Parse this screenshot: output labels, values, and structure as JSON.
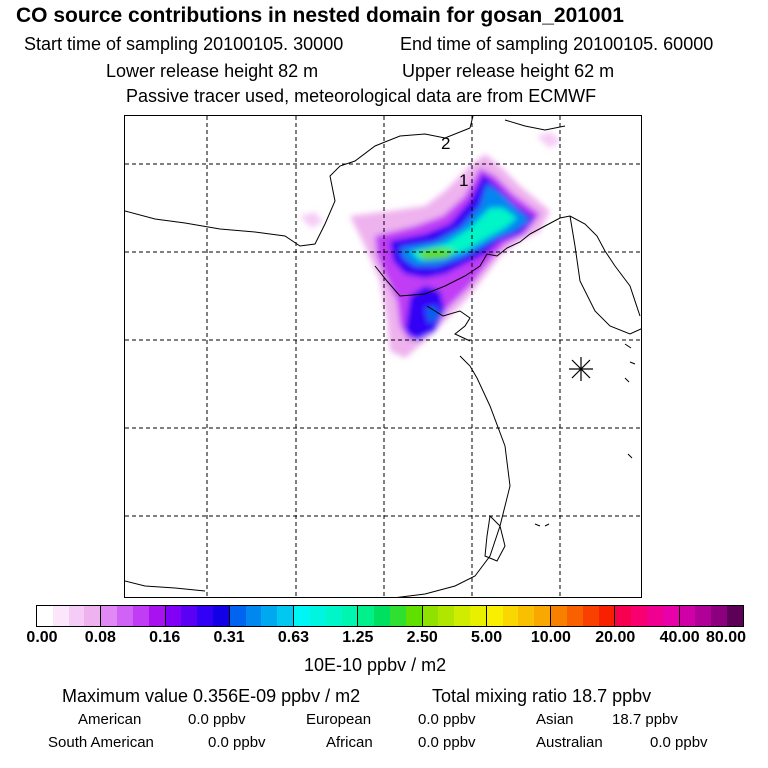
{
  "title": "CO  source contributions in nested domain for gosan_201001",
  "header": {
    "start": "Start time of sampling 20100105. 30000",
    "end": "End time of sampling 20100105. 60000",
    "lower": "Lower release height   82 m",
    "upper": "Upper release height   62 m",
    "tracer": "Passive tracer used, meteorological data are from ECMWF"
  },
  "map": {
    "labels": {
      "one": "1",
      "two": "2"
    },
    "receptor_icon": "asterisk-icon"
  },
  "colorbar": {
    "ticks": [
      "0.00",
      "0.08",
      "0.16",
      "0.31",
      "0.63",
      "1.25",
      "2.50",
      "5.00",
      "10.00",
      "20.00",
      "40.00",
      "80.00"
    ],
    "colors": [
      [
        "#ffffff",
        "#fbe6fb",
        "#f5ccf5",
        "#eeb2ee"
      ],
      [
        "#e089f5",
        "#d062f5",
        "#c03cf5",
        "#a812f0"
      ],
      [
        "#8200f5",
        "#5a00f5",
        "#3200f5",
        "#1200e6"
      ],
      [
        "#0064f0",
        "#0088f0",
        "#00a8f0",
        "#00c8f0"
      ],
      [
        "#00f5f5",
        "#00f5e0",
        "#00f5c8",
        "#00f5b0"
      ],
      [
        "#00f08c",
        "#00e060",
        "#30e030",
        "#60e000"
      ],
      [
        "#90e000",
        "#b0e600",
        "#d0ec00",
        "#e8f000"
      ],
      [
        "#f8f000",
        "#f8d800",
        "#f8c000",
        "#f8a800"
      ],
      [
        "#f88000",
        "#f86000",
        "#f84000",
        "#f82000"
      ],
      [
        "#f80050",
        "#f80070",
        "#f00090",
        "#e800a8"
      ],
      [
        "#d000a8",
        "#b00098",
        "#8c0080",
        "#5c0058"
      ]
    ],
    "units": "10E-10 ppbv / m2"
  },
  "summary": {
    "max": "Maximum value  0.356E-09 ppbv / m2",
    "total": "Total mixing ratio       18.7 ppbv"
  },
  "regions": [
    {
      "name": "American",
      "value": "0.0 ppbv"
    },
    {
      "name": "European",
      "value": "0.0 ppbv"
    },
    {
      "name": "Asian",
      "value": "18.7 ppbv"
    },
    {
      "name": "South American",
      "value": "0.0 ppbv"
    },
    {
      "name": "African",
      "value": "0.0 ppbv"
    },
    {
      "name": "Australian",
      "value": "0.0 ppbv"
    }
  ]
}
